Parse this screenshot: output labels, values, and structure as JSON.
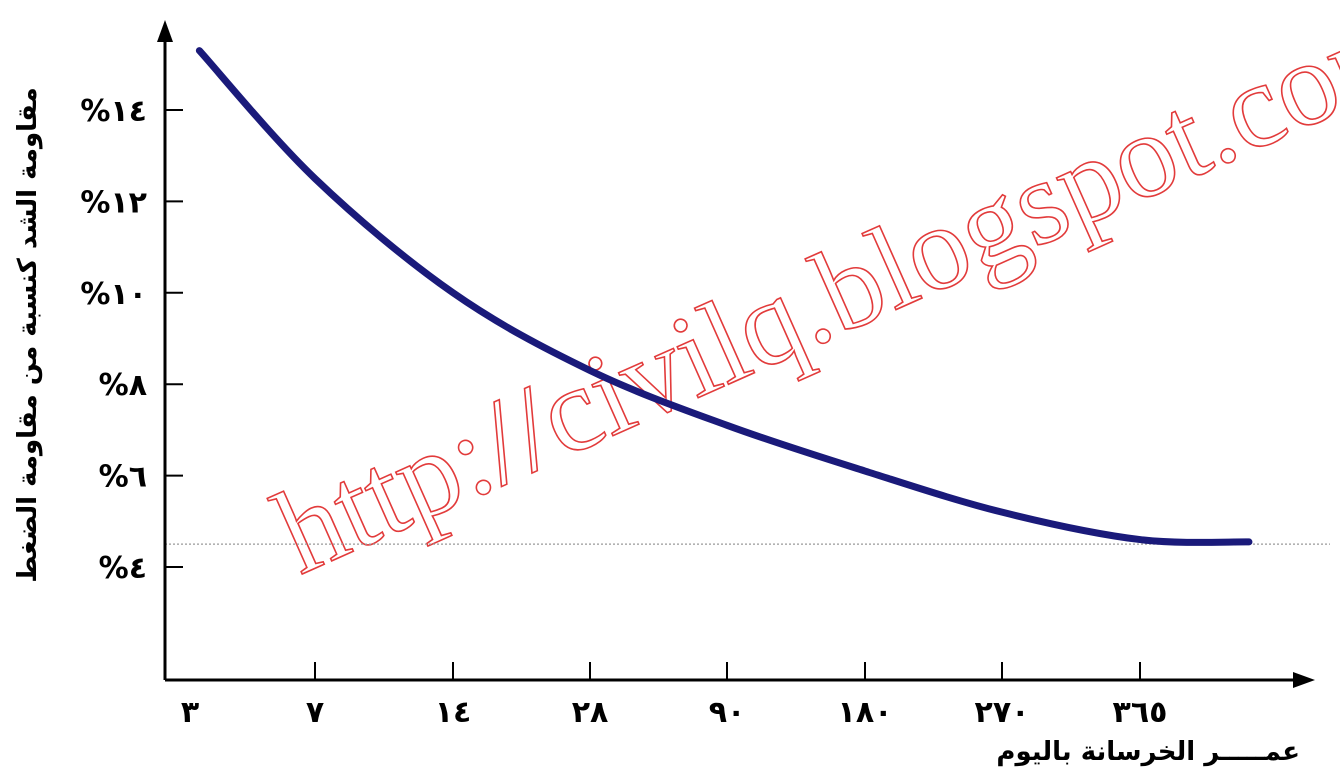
{
  "chart_data": {
    "type": "line",
    "xlabel": "عمـــــر الخرسانة باليوم",
    "ylabel": "مقاومة الشد كنسبة من مقاومة الضغط",
    "x_ticks": [
      "٣",
      "٧",
      "١٤",
      "٢٨",
      "٩٠",
      "١٨٠",
      "٢٧٠",
      "٣٦٥"
    ],
    "y_ticks": [
      "%٤",
      "%٦",
      "%٨",
      "%١٠",
      "%١٢",
      "%١٤"
    ],
    "y_tick_values": [
      4,
      6,
      8,
      10,
      12,
      14
    ],
    "ylim": [
      2,
      16
    ],
    "reference_line_value": 4.5,
    "grid": false,
    "series": [
      {
        "color": "#1a1a7a",
        "points": [
          {
            "x": 3.3,
            "y": 15.3
          },
          {
            "x": 7,
            "y": 12.5
          },
          {
            "x": 14,
            "y": 10.0
          },
          {
            "x": 28,
            "y": 8.3
          },
          {
            "x": 90,
            "y": 7.1
          },
          {
            "x": 180,
            "y": 6.1
          },
          {
            "x": 270,
            "y": 5.2
          },
          {
            "x": 365,
            "y": 4.6
          },
          {
            "x": 440,
            "y": 4.55
          }
        ]
      }
    ],
    "watermark": "http://civilq.blogspot.com",
    "watermark_color": "#e23b3b"
  }
}
